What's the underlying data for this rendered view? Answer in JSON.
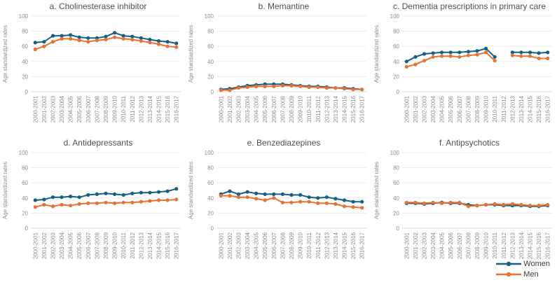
{
  "page": {
    "background": "#ffffff"
  },
  "colors": {
    "women": "#156082",
    "men": "#E97132",
    "grid": "#ececec",
    "axis": "#d9d9d9",
    "tick_text": "#8c8c8c",
    "title_text": "#4f4f4f",
    "legend_text": "#3d3d3d"
  },
  "legend": {
    "items": [
      {
        "label": "Women",
        "color": "#156082"
      },
      {
        "label": "Men",
        "color": "#E97132"
      }
    ]
  },
  "chart_data": [
    {
      "id": "a",
      "type": "line",
      "title": "a. Cholinesterase inhibitor",
      "ylabel": "Age standardized rates",
      "ylim": [
        0,
        100
      ],
      "yticks": [
        0,
        20,
        40,
        60,
        80,
        100
      ],
      "grid": true,
      "legend_position": "bottom-right",
      "categories": [
        "2000-2001",
        "2001-2002",
        "2002-2003",
        "2003-2004",
        "2004-2005",
        "2005-2006",
        "2006-2007",
        "2007-2008",
        "2008-2009",
        "2009-2010",
        "2010-2011",
        "2011-2012",
        "2012-2013",
        "2013-2014",
        "2014-2015",
        "2015-2016",
        "2016-2017"
      ],
      "series": [
        {
          "name": "Women",
          "color": "#156082",
          "values": [
            65,
            66,
            74,
            74,
            75,
            72,
            71,
            71,
            73,
            78,
            74,
            73,
            71,
            69,
            67,
            66,
            64
          ]
        },
        {
          "name": "Men",
          "color": "#E97132",
          "values": [
            56,
            60,
            66,
            70,
            70,
            68,
            66,
            68,
            69,
            72,
            70,
            69,
            67,
            65,
            63,
            60,
            59
          ]
        }
      ]
    },
    {
      "id": "b",
      "type": "line",
      "title": "b. Memantine",
      "ylabel": "Age standardized rates",
      "ylim": [
        0,
        100
      ],
      "yticks": [
        0,
        20,
        40,
        60,
        80,
        100
      ],
      "grid": true,
      "categories": [
        "2000-2001",
        "2001-2002",
        "2002-2003",
        "2003-2004",
        "2004-2005",
        "2005-2006",
        "2006-2007",
        "2007-2008",
        "2008-2009",
        "2009-2010",
        "2010-2011",
        "2011-2012",
        "2012-2013",
        "2013-2014",
        "2014-2015",
        "2015-2016",
        "2016-2017"
      ],
      "series": [
        {
          "name": "Women",
          "color": "#156082",
          "values": [
            3,
            4,
            6,
            8,
            9,
            10,
            10,
            10,
            9,
            8,
            7,
            7,
            6,
            5,
            5,
            4,
            3
          ]
        },
        {
          "name": "Men",
          "color": "#E97132",
          "values": [
            2,
            2,
            5,
            6,
            7,
            7,
            7,
            8,
            8,
            7,
            6,
            6,
            5,
            5,
            4,
            3,
            3
          ]
        }
      ]
    },
    {
      "id": "c",
      "type": "line",
      "title": "c. Dementia prescriptions in primary care",
      "ylabel": "Age standardized rates",
      "ylim": [
        0,
        100
      ],
      "yticks": [
        0,
        20,
        40,
        60,
        80,
        100
      ],
      "grid": true,
      "categories": [
        "2000-2001",
        "2001-2002",
        "2002-2003",
        "2003-2004",
        "2004-2005",
        "2005-2006",
        "2006-2007",
        "2007-2008",
        "2008-2009",
        "2009-2010",
        "2010-2011",
        "2011-2012",
        "2012-2013",
        "2013-2014",
        "2014-2015",
        "2015-2016",
        "2016-2017"
      ],
      "series": [
        {
          "name": "Women",
          "color": "#156082",
          "values": [
            40,
            46,
            50,
            51,
            52,
            52,
            52,
            53,
            54,
            57,
            46,
            null,
            52,
            52,
            52,
            51,
            52
          ]
        },
        {
          "name": "Men",
          "color": "#E97132",
          "values": [
            33,
            36,
            41,
            46,
            47,
            47,
            46,
            48,
            49,
            52,
            41,
            null,
            48,
            47,
            47,
            44,
            44
          ]
        }
      ]
    },
    {
      "id": "d",
      "type": "line",
      "title": "d. Antidepressants",
      "ylabel": "Age standardized rates",
      "ylim": [
        0,
        100
      ],
      "yticks": [
        0,
        20,
        40,
        60,
        80,
        100
      ],
      "grid": true,
      "categories": [
        "2000-2001",
        "2001-2002",
        "2002-2003",
        "2003-2004",
        "2004-2005",
        "2005-2006",
        "2006-2007",
        "2007-2008",
        "2008-2009",
        "2009-2010",
        "2010-2011",
        "2011-2012",
        "2012-2013",
        "2013-2014",
        "2014-2015",
        "2015-2016",
        "2016-2017"
      ],
      "series": [
        {
          "name": "Women",
          "color": "#156082",
          "values": [
            37,
            38,
            41,
            41,
            42,
            41,
            44,
            45,
            46,
            45,
            44,
            46,
            47,
            47,
            48,
            49,
            52
          ]
        },
        {
          "name": "Men",
          "color": "#E97132",
          "values": [
            28,
            31,
            29,
            31,
            30,
            32,
            33,
            33,
            34,
            33,
            34,
            34,
            35,
            36,
            37,
            37,
            38
          ]
        }
      ]
    },
    {
      "id": "e",
      "type": "line",
      "title": "e. Benzediazepines",
      "ylabel": "Age standardized rates",
      "ylim": [
        0,
        100
      ],
      "yticks": [
        0,
        20,
        40,
        60,
        80,
        100
      ],
      "grid": true,
      "categories": [
        "2000-2001",
        "2001-2002",
        "2002-2003",
        "2003-2004",
        "2004-2005",
        "2005-2006",
        "2006-2007",
        "2007-2008",
        "2008-2009",
        "2009-2010",
        "2010-2011",
        "2011-2012",
        "2012-2013",
        "2013-2014",
        "2014-2015",
        "2015-2016",
        "2016-2017"
      ],
      "series": [
        {
          "name": "Women",
          "color": "#156082",
          "values": [
            45,
            49,
            45,
            48,
            46,
            45,
            45,
            45,
            44,
            44,
            41,
            40,
            41,
            39,
            37,
            35,
            35
          ]
        },
        {
          "name": "Men",
          "color": "#E97132",
          "values": [
            43,
            43,
            41,
            41,
            39,
            37,
            40,
            34,
            34,
            35,
            35,
            33,
            33,
            32,
            29,
            28,
            27
          ]
        }
      ]
    },
    {
      "id": "f",
      "type": "line",
      "title": "f. Antipsychotics",
      "ylabel": "Age standardized rates",
      "ylim": [
        0,
        100
      ],
      "yticks": [
        0,
        20,
        40,
        60,
        80,
        100
      ],
      "grid": true,
      "categories": [
        "2000-2001",
        "2001-2002",
        "2002-2003",
        "2003-2004",
        "2004-2005",
        "2005-2006",
        "2006-2007",
        "2007-2008",
        "2008-2009",
        "2009-2010",
        "2010-2011",
        "2011-2012",
        "2012-2013",
        "2013-2014",
        "2014-2015",
        "2015-2016",
        "2016-2017"
      ],
      "series": [
        {
          "name": "Women",
          "color": "#156082",
          "values": [
            33,
            33,
            32,
            33,
            34,
            33,
            33,
            31,
            30,
            31,
            31,
            30,
            30,
            30,
            29,
            29,
            30
          ]
        },
        {
          "name": "Men",
          "color": "#E97132",
          "values": [
            34,
            34,
            33,
            34,
            33,
            34,
            34,
            29,
            30,
            31,
            32,
            31,
            32,
            31,
            30,
            30,
            31
          ]
        }
      ]
    }
  ]
}
